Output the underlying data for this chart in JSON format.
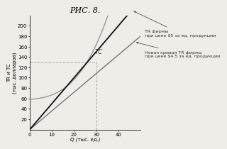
{
  "title": "РИС. 8.",
  "xlabel": "Q (тыс. ед.)",
  "ylabel": "TR и TC\n(тыс. долларов)",
  "xlim": [
    0,
    50
  ],
  "ylim": [
    0,
    220
  ],
  "xticks": [
    0,
    10,
    20,
    30,
    40
  ],
  "yticks": [
    20,
    40,
    60,
    80,
    100,
    120,
    140,
    160,
    180,
    200
  ],
  "tc_color": "#999999",
  "tr1_color": "#111111",
  "tr2_color": "#777777",
  "dashed_color": "#aaaaaa",
  "dashed_x": 30,
  "dashed_y": 130,
  "tc_label": "TC",
  "tr1_annotation_line1": "TR фирмы",
  "tr1_annotation_line2": "при цене $5 за ед. продукции",
  "tr2_annotation_line1": "Новая кривая TR фирмы",
  "tr2_annotation_line2": "при цене $4,5 за ед. продукции",
  "background_color": "#eeede8",
  "title_fontsize": 8,
  "axis_fontsize": 5,
  "label_fontsize": 4.5
}
